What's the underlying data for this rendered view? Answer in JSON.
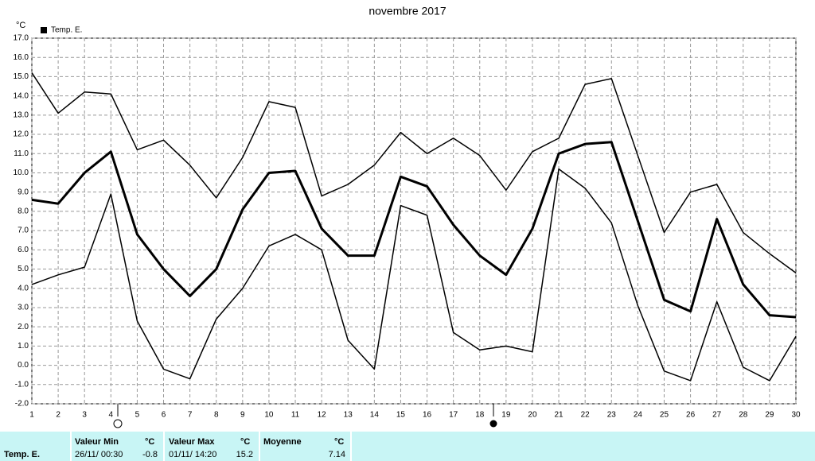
{
  "chart_data": {
    "type": "line",
    "title": "novembre 2017",
    "y_unit": "°C",
    "x": [
      1,
      2,
      3,
      4,
      5,
      6,
      7,
      8,
      9,
      10,
      11,
      12,
      13,
      14,
      15,
      16,
      17,
      18,
      19,
      20,
      21,
      22,
      23,
      24,
      25,
      26,
      27,
      28,
      29,
      30
    ],
    "xlim": [
      1,
      30
    ],
    "series": [
      {
        "name": "Temp. E.",
        "color": "#000000",
        "values": [
          8.6,
          8.4,
          10.0,
          11.1,
          6.8,
          5.0,
          3.6,
          5.0,
          8.1,
          10.0,
          10.1,
          7.1,
          5.7,
          5.7,
          9.8,
          9.3,
          7.3,
          5.7,
          4.7,
          7.1,
          11.0,
          11.5,
          11.6,
          7.5,
          3.4,
          2.8,
          7.6,
          4.2,
          2.6,
          2.5
        ],
        "high": [
          15.2,
          13.1,
          14.2,
          14.1,
          11.2,
          11.7,
          10.4,
          8.7,
          10.8,
          13.7,
          13.4,
          8.8,
          9.4,
          10.4,
          12.1,
          11.0,
          11.8,
          10.9,
          9.1,
          11.1,
          11.8,
          14.6,
          14.9,
          10.9,
          6.9,
          9.0,
          9.4,
          6.9,
          5.8,
          4.8
        ],
        "low": [
          4.2,
          4.7,
          5.1,
          8.9,
          2.3,
          -0.2,
          -0.7,
          2.4,
          4.0,
          6.2,
          6.8,
          6.0,
          1.3,
          -0.2,
          8.3,
          7.8,
          1.7,
          0.8,
          1.0,
          0.7,
          10.2,
          9.2,
          7.4,
          3.1,
          -0.3,
          -0.8,
          3.3,
          -0.1,
          -0.8,
          1.5
        ]
      }
    ],
    "ylim": [
      -2,
      17
    ],
    "yticks": [
      {
        "value": -2,
        "label": "-2.0"
      },
      {
        "value": -1,
        "label": "-1.0"
      },
      {
        "value": 0,
        "label": "0.0"
      },
      {
        "value": 1,
        "label": "1.0"
      },
      {
        "value": 2,
        "label": "2.0"
      },
      {
        "value": 3,
        "label": "3.0"
      },
      {
        "value": 4,
        "label": "4.0"
      },
      {
        "value": 5,
        "label": "5.0"
      },
      {
        "value": 6,
        "label": "6.0"
      },
      {
        "value": 7,
        "label": "7.0"
      },
      {
        "value": 8,
        "label": "8.0"
      },
      {
        "value": 9,
        "label": "9.0"
      },
      {
        "value": 10,
        "label": "10.0"
      },
      {
        "value": 11,
        "label": "11.0"
      },
      {
        "value": 12,
        "label": "12.0"
      },
      {
        "value": 13,
        "label": "13.0"
      },
      {
        "value": 14,
        "label": "14.0"
      },
      {
        "value": 15,
        "label": "15.0"
      },
      {
        "value": 16,
        "label": "16.0"
      },
      {
        "value": 17,
        "label": "17.0"
      }
    ],
    "grid": true
  },
  "table": {
    "row_label": "Temp. E.",
    "min": {
      "header": "Valeur Min",
      "unit": "°C",
      "date": "26/11/ 00:30",
      "value": -0.8
    },
    "max": {
      "header": "Valeur Max",
      "unit": "°C",
      "date": "01/11/ 14:20",
      "value": 15.2
    },
    "mean": {
      "header": "Moyenne",
      "unit": "°C",
      "value": 7.14
    }
  }
}
